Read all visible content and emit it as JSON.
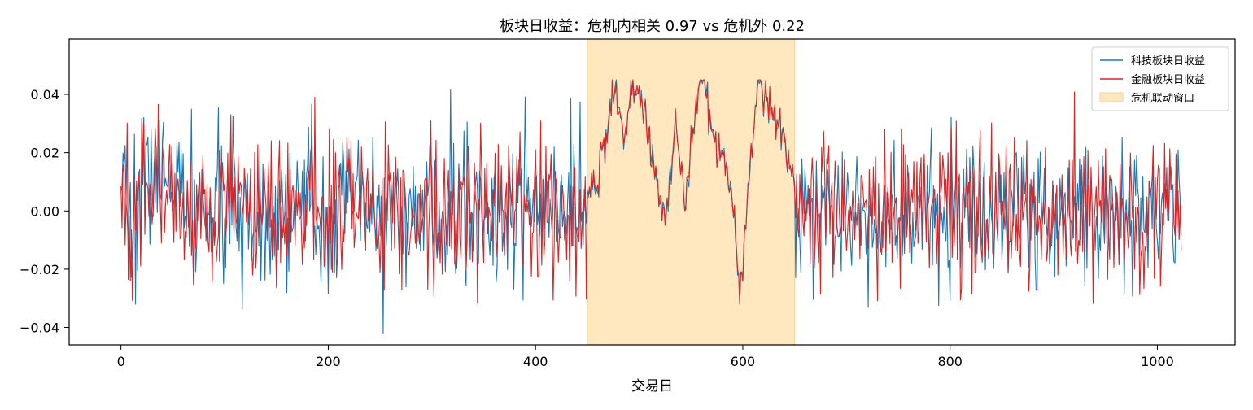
{
  "chart_data": {
    "type": "line",
    "title": "板块日收益：危机内相关 0.97 vs 危机外 0.22",
    "xlabel": "交易日",
    "ylabel": "",
    "xlim": [
      -50,
      1075
    ],
    "ylim": [
      -0.046,
      0.059
    ],
    "x_ticks": [
      0,
      200,
      400,
      600,
      800,
      1000
    ],
    "x_tick_labels": [
      "0",
      "200",
      "400",
      "600",
      "800",
      "1000"
    ],
    "y_ticks": [
      -0.04,
      -0.02,
      0.0,
      0.02,
      0.04
    ],
    "y_tick_labels": [
      "−0.04",
      "−0.02",
      "0.00",
      "0.02",
      "0.04"
    ],
    "grid": false,
    "legend_position": "top-right",
    "x_start": 0,
    "x_end": 1023,
    "crisis_window": {
      "name": "危机联动窗口",
      "x_start": 450,
      "x_end": 650,
      "color": "#ffe7bf"
    },
    "crisis_profile": {
      "x": [
        450,
        460,
        470,
        478,
        485,
        495,
        505,
        515,
        525,
        535,
        545,
        555,
        562,
        570,
        580,
        590,
        597,
        605,
        615,
        625,
        635,
        645,
        650
      ],
      "y": [
        0.006,
        0.012,
        0.03,
        0.044,
        0.024,
        0.046,
        0.034,
        0.014,
        -0.004,
        0.026,
        0.004,
        0.036,
        0.05,
        0.026,
        0.02,
        0.004,
        -0.028,
        0.006,
        0.048,
        0.034,
        0.03,
        0.016,
        0.008
      ]
    },
    "series": [
      {
        "name": "科技板块日收益",
        "color": "#1f77b4",
        "std": 0.0135,
        "seed": 7
      },
      {
        "name": "金融板块日收益",
        "color": "#d62728",
        "std": 0.0135,
        "seed": 19
      }
    ]
  }
}
